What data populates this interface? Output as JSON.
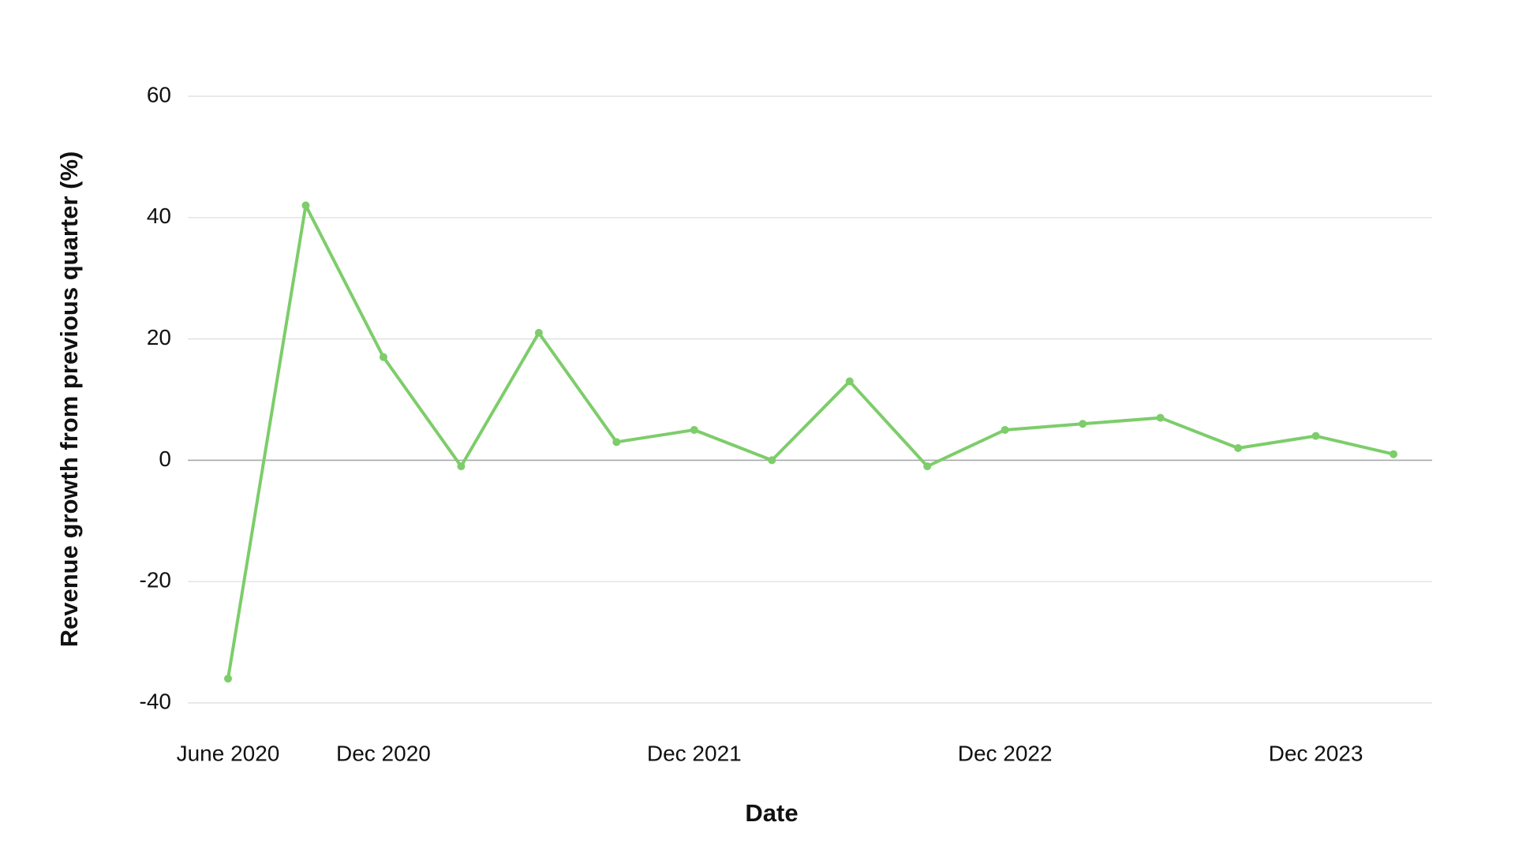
{
  "chart_data": {
    "type": "line",
    "x_label": "Date",
    "y_label": "Revenue growth from previous quarter (%)",
    "categories": [
      "June 2020",
      null,
      "Dec 2020",
      null,
      null,
      null,
      "Dec 2021",
      null,
      null,
      null,
      "Dec 2022",
      null,
      null,
      null,
      "Dec 2023",
      null
    ],
    "values": [
      -36,
      42,
      17,
      -1,
      21,
      3,
      5,
      0,
      13,
      -1,
      5,
      6,
      7,
      2,
      4,
      1
    ],
    "color": "#7dcd6a",
    "ylim": [
      -40,
      60
    ],
    "yticks": [
      -40,
      -20,
      0,
      20,
      40,
      60
    ],
    "grid": true
  }
}
